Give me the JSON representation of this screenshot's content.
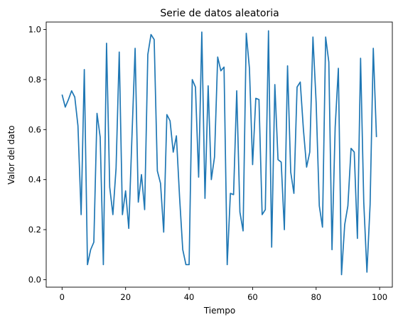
{
  "chart_data": {
    "type": "line",
    "title": "Serie de datos aleatoria",
    "xlabel": "Tiempo",
    "ylabel": "Valor del dato",
    "xlim": [
      -5,
      104
    ],
    "ylim": [
      -0.03,
      1.03
    ],
    "xticks": [
      0,
      20,
      40,
      60,
      80,
      100
    ],
    "xtick_labels": [
      "0",
      "20",
      "40",
      "60",
      "80",
      "100"
    ],
    "yticks": [
      0.0,
      0.2,
      0.4,
      0.6,
      0.8,
      1.0
    ],
    "ytick_labels": [
      "0.0",
      "0.2",
      "0.4",
      "0.6",
      "0.8",
      "1.0"
    ],
    "grid": false,
    "series": [
      {
        "color": "#1f77b4",
        "x": [
          0,
          1,
          2,
          3,
          4,
          5,
          6,
          7,
          8,
          9,
          10,
          11,
          12,
          13,
          14,
          15,
          16,
          17,
          18,
          19,
          20,
          21,
          22,
          23,
          24,
          25,
          26,
          27,
          28,
          29,
          30,
          31,
          32,
          33,
          34,
          35,
          36,
          37,
          38,
          39,
          40,
          41,
          42,
          43,
          44,
          45,
          46,
          47,
          48,
          49,
          50,
          51,
          52,
          53,
          54,
          55,
          56,
          57,
          58,
          59,
          60,
          61,
          62,
          63,
          64,
          65,
          66,
          67,
          68,
          69,
          70,
          71,
          72,
          73,
          74,
          75,
          76,
          77,
          78,
          79,
          80,
          81,
          82,
          83,
          84,
          85,
          86,
          87,
          88,
          89,
          90,
          91,
          92,
          93,
          94,
          95,
          96,
          97,
          98,
          99
        ],
        "y": [
          0.74,
          0.69,
          0.72,
          0.755,
          0.73,
          0.615,
          0.26,
          0.84,
          0.06,
          0.12,
          0.15,
          0.665,
          0.57,
          0.06,
          0.945,
          0.37,
          0.26,
          0.445,
          0.91,
          0.26,
          0.355,
          0.205,
          0.57,
          0.925,
          0.31,
          0.42,
          0.28,
          0.9,
          0.98,
          0.96,
          0.435,
          0.385,
          0.19,
          0.66,
          0.635,
          0.51,
          0.575,
          0.33,
          0.12,
          0.06,
          0.06,
          0.8,
          0.77,
          0.41,
          0.99,
          0.325,
          0.775,
          0.4,
          0.49,
          0.89,
          0.835,
          0.85,
          0.06,
          0.345,
          0.34,
          0.755,
          0.27,
          0.195,
          0.985,
          0.845,
          0.46,
          0.725,
          0.72,
          0.26,
          0.28,
          0.995,
          0.13,
          0.78,
          0.48,
          0.47,
          0.2,
          0.855,
          0.43,
          0.345,
          0.77,
          0.79,
          0.6,
          0.45,
          0.51,
          0.97,
          0.71,
          0.295,
          0.21,
          0.97,
          0.87,
          0.12,
          0.61,
          0.845,
          0.02,
          0.22,
          0.295,
          0.525,
          0.51,
          0.165,
          0.885,
          0.31,
          0.03,
          0.3,
          0.925,
          0.57
        ]
      }
    ]
  }
}
